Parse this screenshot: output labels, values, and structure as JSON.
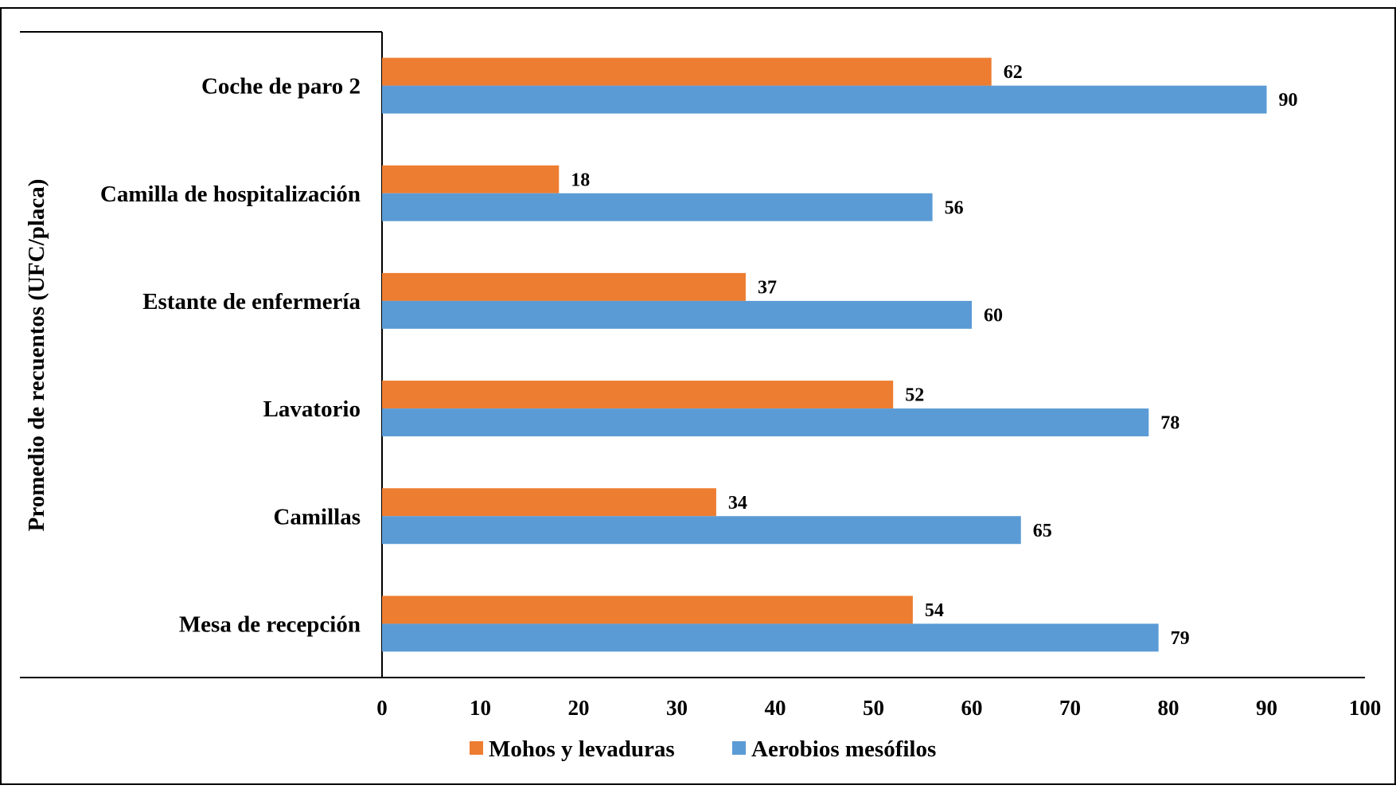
{
  "chart_data": {
    "type": "bar",
    "orientation": "horizontal",
    "categories": [
      "Coche de paro 2",
      "Camilla de hospitalización",
      "Estante de enfermería",
      "Lavatorio",
      "Camillas",
      "Mesa de recepción"
    ],
    "series": [
      {
        "name": "Mohos y levaduras",
        "color": "#ED7D31",
        "values": [
          62,
          18,
          37,
          52,
          34,
          54
        ]
      },
      {
        "name": "Aerobios mesófilos",
        "color": "#5B9BD5",
        "values": [
          90,
          56,
          60,
          78,
          65,
          79
        ]
      }
    ],
    "ylabel": "Promedio de recuentos (UFC/placa)",
    "xlabel": "",
    "xlim": [
      0,
      100
    ],
    "xticks": [
      "0",
      "10",
      "20",
      "30",
      "40",
      "50",
      "60",
      "70",
      "80",
      "90",
      "100"
    ],
    "data_labels": true,
    "legend_position": "bottom",
    "grid": false
  }
}
